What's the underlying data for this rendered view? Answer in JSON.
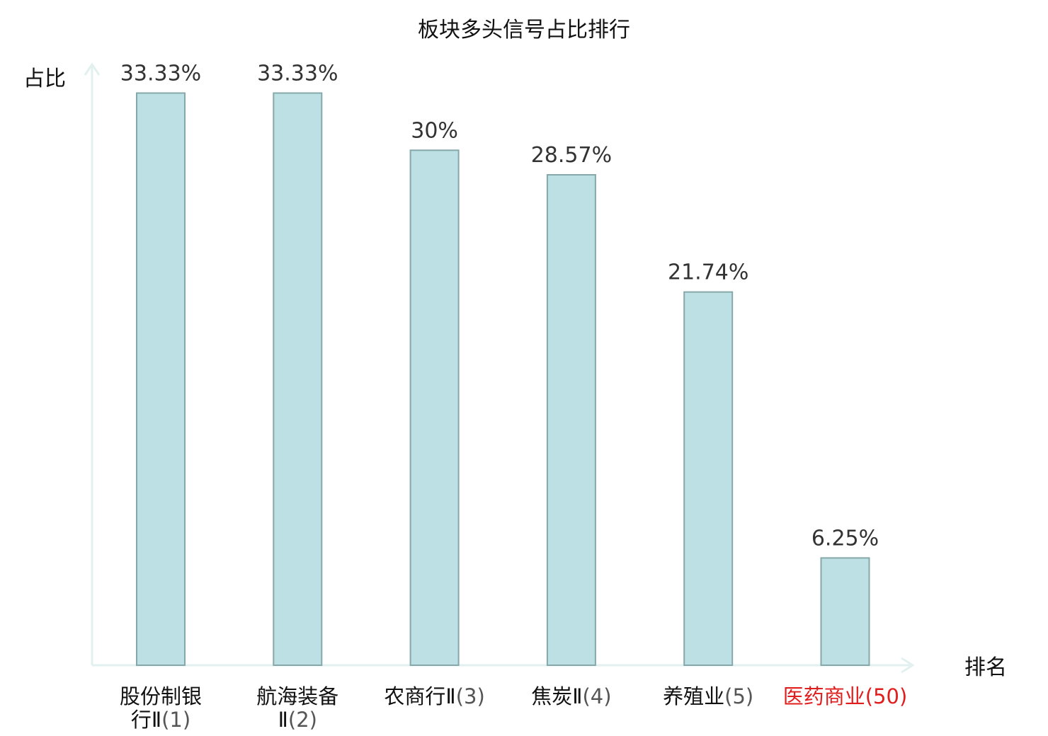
{
  "chart_data": {
    "type": "bar",
    "title": "板块多头信号占比排行",
    "xlabel": "排名",
    "ylabel": "占比",
    "ylim": [
      0,
      35
    ],
    "grid": false,
    "legend": "none",
    "categories": [
      {
        "name": "股份制银行Ⅱ",
        "rank": "(1)",
        "lines": [
          "股份制银",
          "行Ⅱ(1)"
        ],
        "highlight": false
      },
      {
        "name": "航海装备Ⅱ",
        "rank": "(2)",
        "lines": [
          "航海装备",
          "Ⅱ(2)"
        ],
        "highlight": false
      },
      {
        "name": "农商行Ⅱ",
        "rank": "(3)",
        "lines": [
          "农商行Ⅱ(3)"
        ],
        "highlight": false
      },
      {
        "name": "焦炭Ⅱ",
        "rank": "(4)",
        "lines": [
          "焦炭Ⅱ(4)"
        ],
        "highlight": false
      },
      {
        "name": "养殖业",
        "rank": "(5)",
        "lines": [
          "养殖业(5)"
        ],
        "highlight": false
      },
      {
        "name": "医药商业",
        "rank": "(50)",
        "lines": [
          "医药商业(50)"
        ],
        "highlight": true
      }
    ],
    "values": [
      33.33,
      33.33,
      30,
      28.57,
      21.74,
      6.25
    ],
    "value_labels": [
      "33.33%",
      "33.33%",
      "30%",
      "28.57%",
      "21.74%",
      "6.25%"
    ],
    "colors": {
      "bar_fill": "#bce0e3",
      "bar_stroke": "#86a8aa",
      "axis": "#e2f1ef",
      "highlight": "#e01e1e"
    }
  }
}
